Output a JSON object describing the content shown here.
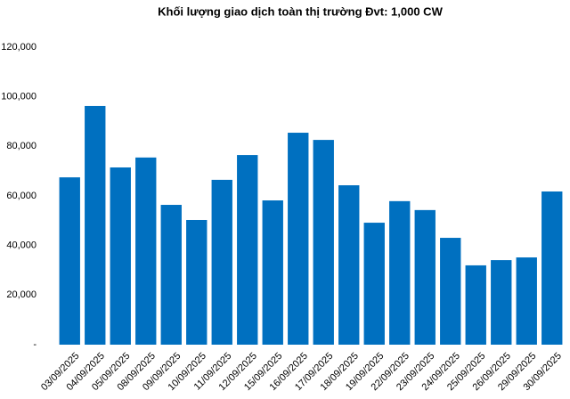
{
  "chart_data": {
    "type": "bar",
    "title": "Khối lượng giao dịch toàn thị trường Đvt: 1,000 CW",
    "categories": [
      "03/09/2025",
      "04/09/2025",
      "05/09/2025",
      "08/09/2025",
      "09/09/2025",
      "10/09/2025",
      "11/09/2025",
      "12/09/2025",
      "15/09/2025",
      "16/09/2025",
      "17/09/2025",
      "18/09/2025",
      "19/09/2025",
      "22/09/2025",
      "23/09/2025",
      "24/09/2025",
      "25/09/2025",
      "26/09/2025",
      "29/09/2025",
      "30/09/2025"
    ],
    "values": [
      67500,
      96300,
      71500,
      75500,
      56400,
      50300,
      66500,
      76500,
      58200,
      85500,
      82600,
      64300,
      49200,
      57900,
      54300,
      43100,
      32000,
      34100,
      35200,
      61800
    ],
    "color": "#0070c0",
    "ylim": [
      0,
      120000
    ],
    "yticks": [
      {
        "value": 0,
        "label": "-"
      },
      {
        "value": 20000,
        "label": "20,000"
      },
      {
        "value": 40000,
        "label": "40,000"
      },
      {
        "value": 60000,
        "label": "60,000"
      },
      {
        "value": 80000,
        "label": "80,000"
      },
      {
        "value": 100000,
        "label": "100,000"
      },
      {
        "value": 120000,
        "label": "120,000"
      }
    ],
    "grid": false
  }
}
